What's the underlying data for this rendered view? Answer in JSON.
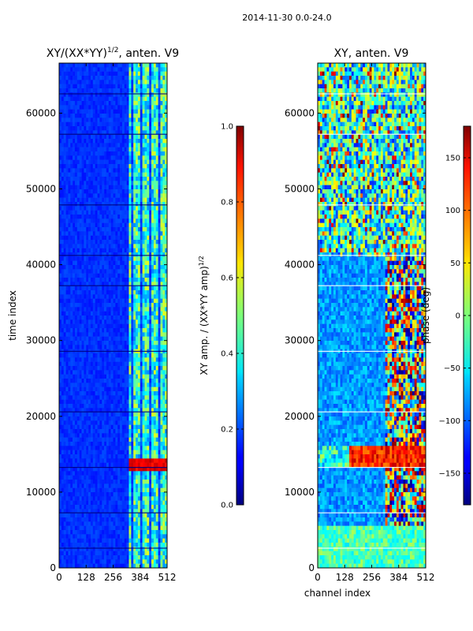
{
  "suptitle": "2014-11-30 0.0-24.0",
  "chart_data": [
    {
      "type": "heatmap",
      "title": "XY/(XX*YY)^1/2, anten. V9",
      "title_main": "XY/(XX*YY)",
      "title_sup": "1/2",
      "title_tail": ", anten. V9",
      "xlabel": "",
      "ylabel": "time index",
      "xlim": [
        0,
        512
      ],
      "ylim": [
        0,
        66600
      ],
      "xticks": [
        0,
        128,
        256,
        384,
        512
      ],
      "yticks": [
        0,
        10000,
        20000,
        30000,
        40000,
        50000,
        60000
      ],
      "colorbar": {
        "label": "XY amp. / (XX*YY amp)^1/2",
        "label_main": "XY amp. / (XX*YY amp)",
        "label_sup": "1/2",
        "ticks": [
          "0.0",
          "0.2",
          "0.4",
          "0.6",
          "0.8",
          "1.0"
        ],
        "range": [
          0,
          1
        ],
        "colormap": "jet"
      }
    },
    {
      "type": "heatmap",
      "title": "XY, anten. V9",
      "xlabel": "channel index",
      "ylabel": "",
      "xlim": [
        0,
        512
      ],
      "ylim": [
        0,
        66600
      ],
      "xticks": [
        0,
        128,
        256,
        384,
        512
      ],
      "yticks": [
        0,
        10000,
        20000,
        30000,
        40000,
        50000,
        60000
      ],
      "colorbar": {
        "label": "phase (deg)",
        "ticks": [
          "−150",
          "−100",
          "−50",
          "0",
          "50",
          "100",
          "150"
        ],
        "range": [
          -180,
          180
        ],
        "colormap": "jet"
      }
    }
  ]
}
